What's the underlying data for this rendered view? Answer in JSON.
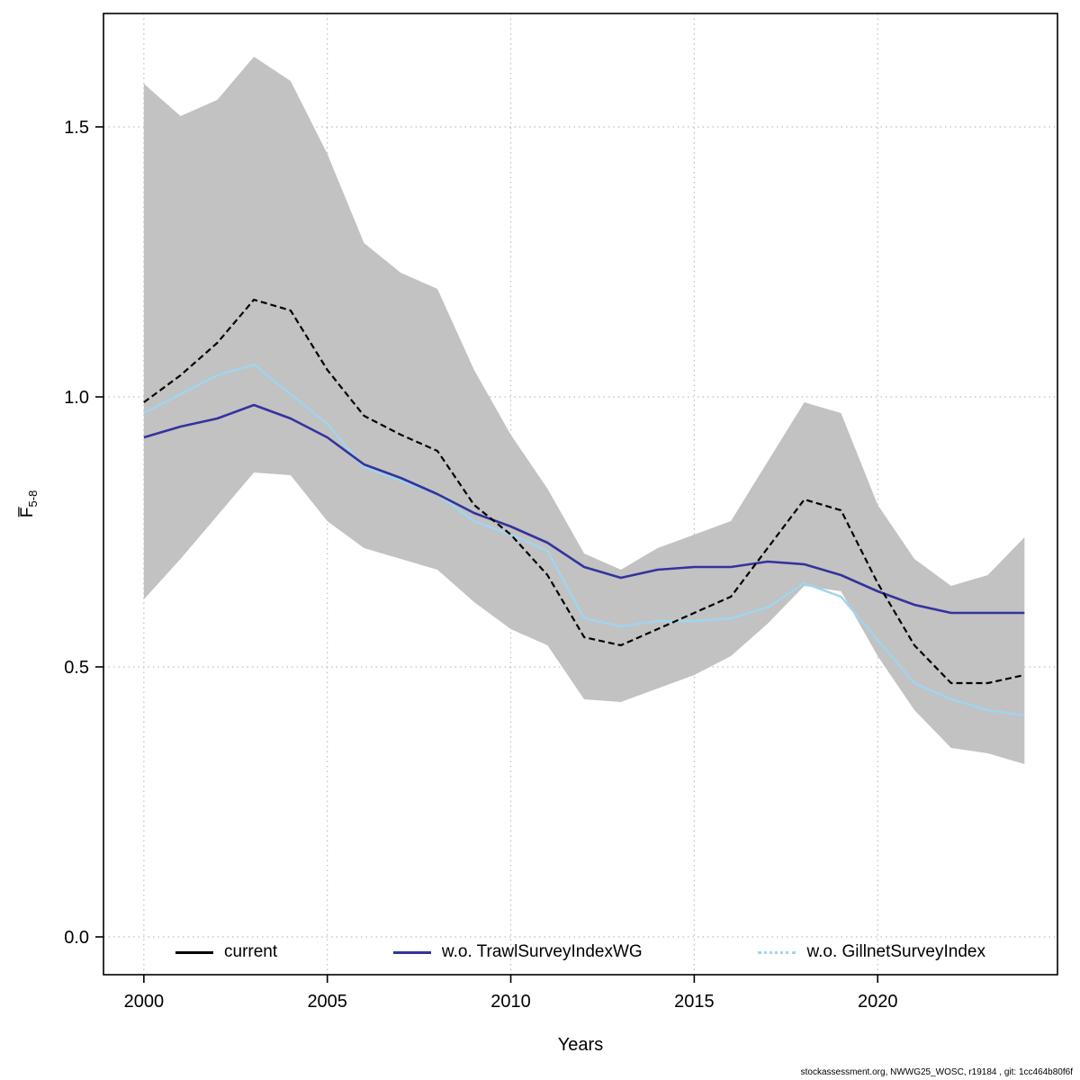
{
  "chart_data": {
    "type": "line",
    "title": "",
    "xlabel": "Years",
    "ylabel_main": "F̅",
    "ylabel_sub": "5-8",
    "xlim": [
      1998.9,
      2024.9
    ],
    "ylim": [
      -0.07,
      1.71
    ],
    "grid": "dotted",
    "legend_position": "bottom-inside",
    "x": [
      2000,
      2001,
      2002,
      2003,
      2004,
      2005,
      2006,
      2007,
      2008,
      2009,
      2010,
      2011,
      2012,
      2013,
      2014,
      2015,
      2016,
      2017,
      2018,
      2019,
      2020,
      2021,
      2022,
      2023,
      2024
    ],
    "x_ticks": [
      {
        "label": "2000",
        "value": 2000
      },
      {
        "label": "2005",
        "value": 2005
      },
      {
        "label": "2010",
        "value": 2010
      },
      {
        "label": "2015",
        "value": 2015
      },
      {
        "label": "2020",
        "value": 2020
      }
    ],
    "y_ticks": [
      {
        "label": "0.0",
        "value": 0.0
      },
      {
        "label": "0.5",
        "value": 0.5
      },
      {
        "label": "1.0",
        "value": 1.0
      },
      {
        "label": "1.5",
        "value": 1.5
      }
    ],
    "series": [
      {
        "name": "current",
        "color": "#000000",
        "dash": "7 4",
        "width": 2.2,
        "values": [
          0.99,
          1.04,
          1.1,
          1.18,
          1.16,
          1.05,
          0.965,
          0.93,
          0.9,
          0.8,
          0.745,
          0.67,
          0.555,
          0.54,
          0.57,
          0.6,
          0.63,
          0.72,
          0.81,
          0.79,
          0.655,
          0.54,
          0.47,
          0.47,
          0.485
        ]
      },
      {
        "name": "w.o. TrawlSurveyIndexWG",
        "color": "#33339E",
        "dash": "",
        "width": 2.6,
        "values": [
          0.925,
          0.945,
          0.96,
          0.985,
          0.96,
          0.925,
          0.875,
          0.85,
          0.82,
          0.785,
          0.76,
          0.73,
          0.685,
          0.665,
          0.68,
          0.685,
          0.685,
          0.695,
          0.69,
          0.67,
          0.64,
          0.615,
          0.6,
          0.6,
          0.6
        ]
      },
      {
        "name": "w.o. GillnetSurveyIndex",
        "color": "#9FD5F0",
        "dash": "",
        "width": 2.4,
        "values": [
          0.97,
          1.005,
          1.04,
          1.06,
          1.005,
          0.95,
          0.87,
          0.845,
          0.82,
          0.77,
          0.745,
          0.715,
          0.59,
          0.575,
          0.585,
          0.585,
          0.59,
          0.61,
          0.655,
          0.63,
          0.55,
          0.47,
          0.44,
          0.42,
          0.41
        ]
      }
    ],
    "band": {
      "color": "#c2c2c2",
      "upper": [
        1.58,
        1.52,
        1.55,
        1.63,
        1.585,
        1.45,
        1.285,
        1.23,
        1.2,
        1.05,
        0.93,
        0.83,
        0.71,
        0.68,
        0.72,
        0.745,
        0.77,
        0.88,
        0.99,
        0.97,
        0.8,
        0.7,
        0.65,
        0.67,
        0.74
      ],
      "lower": [
        0.625,
        0.7,
        0.78,
        0.86,
        0.855,
        0.77,
        0.72,
        0.7,
        0.68,
        0.62,
        0.57,
        0.54,
        0.44,
        0.435,
        0.46,
        0.485,
        0.52,
        0.58,
        0.65,
        0.64,
        0.52,
        0.42,
        0.35,
        0.34,
        0.32
      ]
    },
    "grid_color": "#bdbdbd"
  },
  "footer": "stockassessment.org, NWWG25_WOSC, r19184 , git: 1cc464b80f6f"
}
